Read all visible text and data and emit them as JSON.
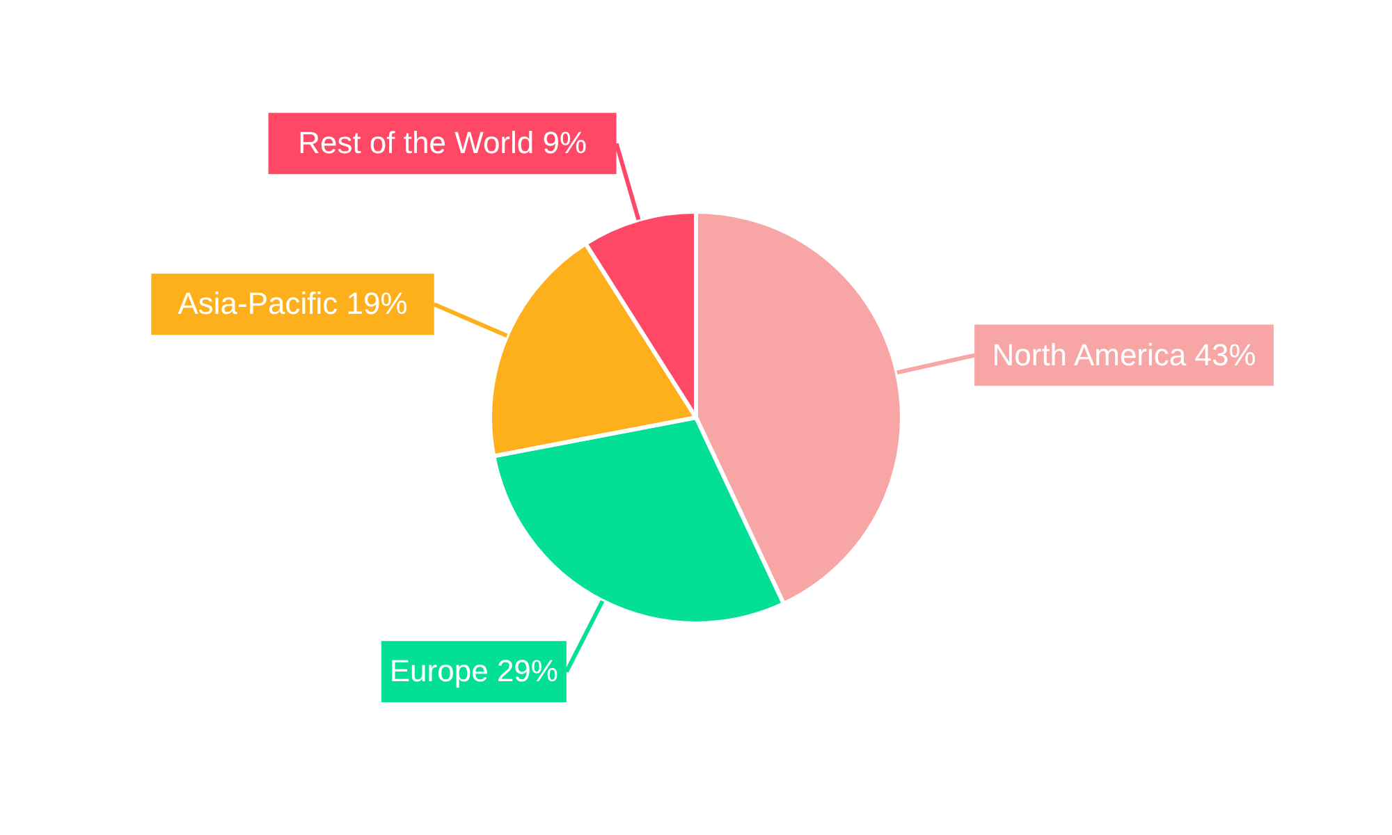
{
  "chart_data": {
    "type": "pie",
    "categories": [
      "North America",
      "Europe",
      "Asia-Pacific",
      "Rest of the World"
    ],
    "values": [
      43,
      29,
      19,
      9
    ],
    "value_labels": [
      "43%",
      "29%",
      "19%",
      "9%"
    ],
    "colors": [
      "#f8a5a6",
      "#03e096",
      "#fdb01b",
      "#ff4766"
    ]
  }
}
